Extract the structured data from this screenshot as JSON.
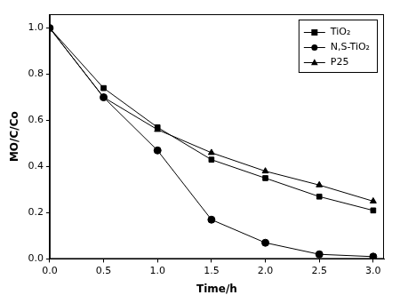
{
  "chart_data": {
    "type": "line",
    "x_label": "Time/h",
    "y_label": "MO/C/Co",
    "x": [
      0.0,
      0.5,
      1.0,
      1.5,
      2.0,
      2.5,
      3.0
    ],
    "series": [
      {
        "name": "TiO₂",
        "color": "#000000",
        "marker": "square",
        "line_style": "solid",
        "values": [
          1.0,
          0.74,
          0.57,
          0.43,
          0.35,
          0.27,
          0.21
        ]
      },
      {
        "name": "N,S-TiO₂",
        "color": "#000000",
        "marker": "circle",
        "line_style": "solid",
        "values": [
          1.0,
          0.7,
          0.47,
          0.17,
          0.07,
          0.02,
          0.01
        ]
      },
      {
        "name": "P25",
        "color": "#000000",
        "marker": "triangle",
        "line_style": "solid",
        "values": [
          1.0,
          0.7,
          0.56,
          0.46,
          0.38,
          0.32,
          0.25
        ]
      }
    ],
    "xlim": [
      0,
      3.1
    ],
    "xticks": [
      {
        "value": 0,
        "label": "0.0"
      },
      {
        "value": 0.5,
        "label": "0.5"
      },
      {
        "value": 1,
        "label": "1.0"
      },
      {
        "value": 1.5,
        "label": "1.5"
      },
      {
        "value": 2,
        "label": "2.0"
      },
      {
        "value": 2.5,
        "label": "2.5"
      },
      {
        "value": 3,
        "label": "3.0"
      }
    ],
    "ylim": [
      0,
      1.06
    ],
    "yticks": [
      {
        "value": 0,
        "label": "0.0"
      },
      {
        "value": 0.2,
        "label": "0.2"
      },
      {
        "value": 0.4,
        "label": "0.4"
      },
      {
        "value": 0.6,
        "label": "0.6"
      },
      {
        "value": 0.8,
        "label": "0.8"
      },
      {
        "value": 1,
        "label": "1.0"
      }
    ],
    "grid": false,
    "legend": "top-right"
  }
}
